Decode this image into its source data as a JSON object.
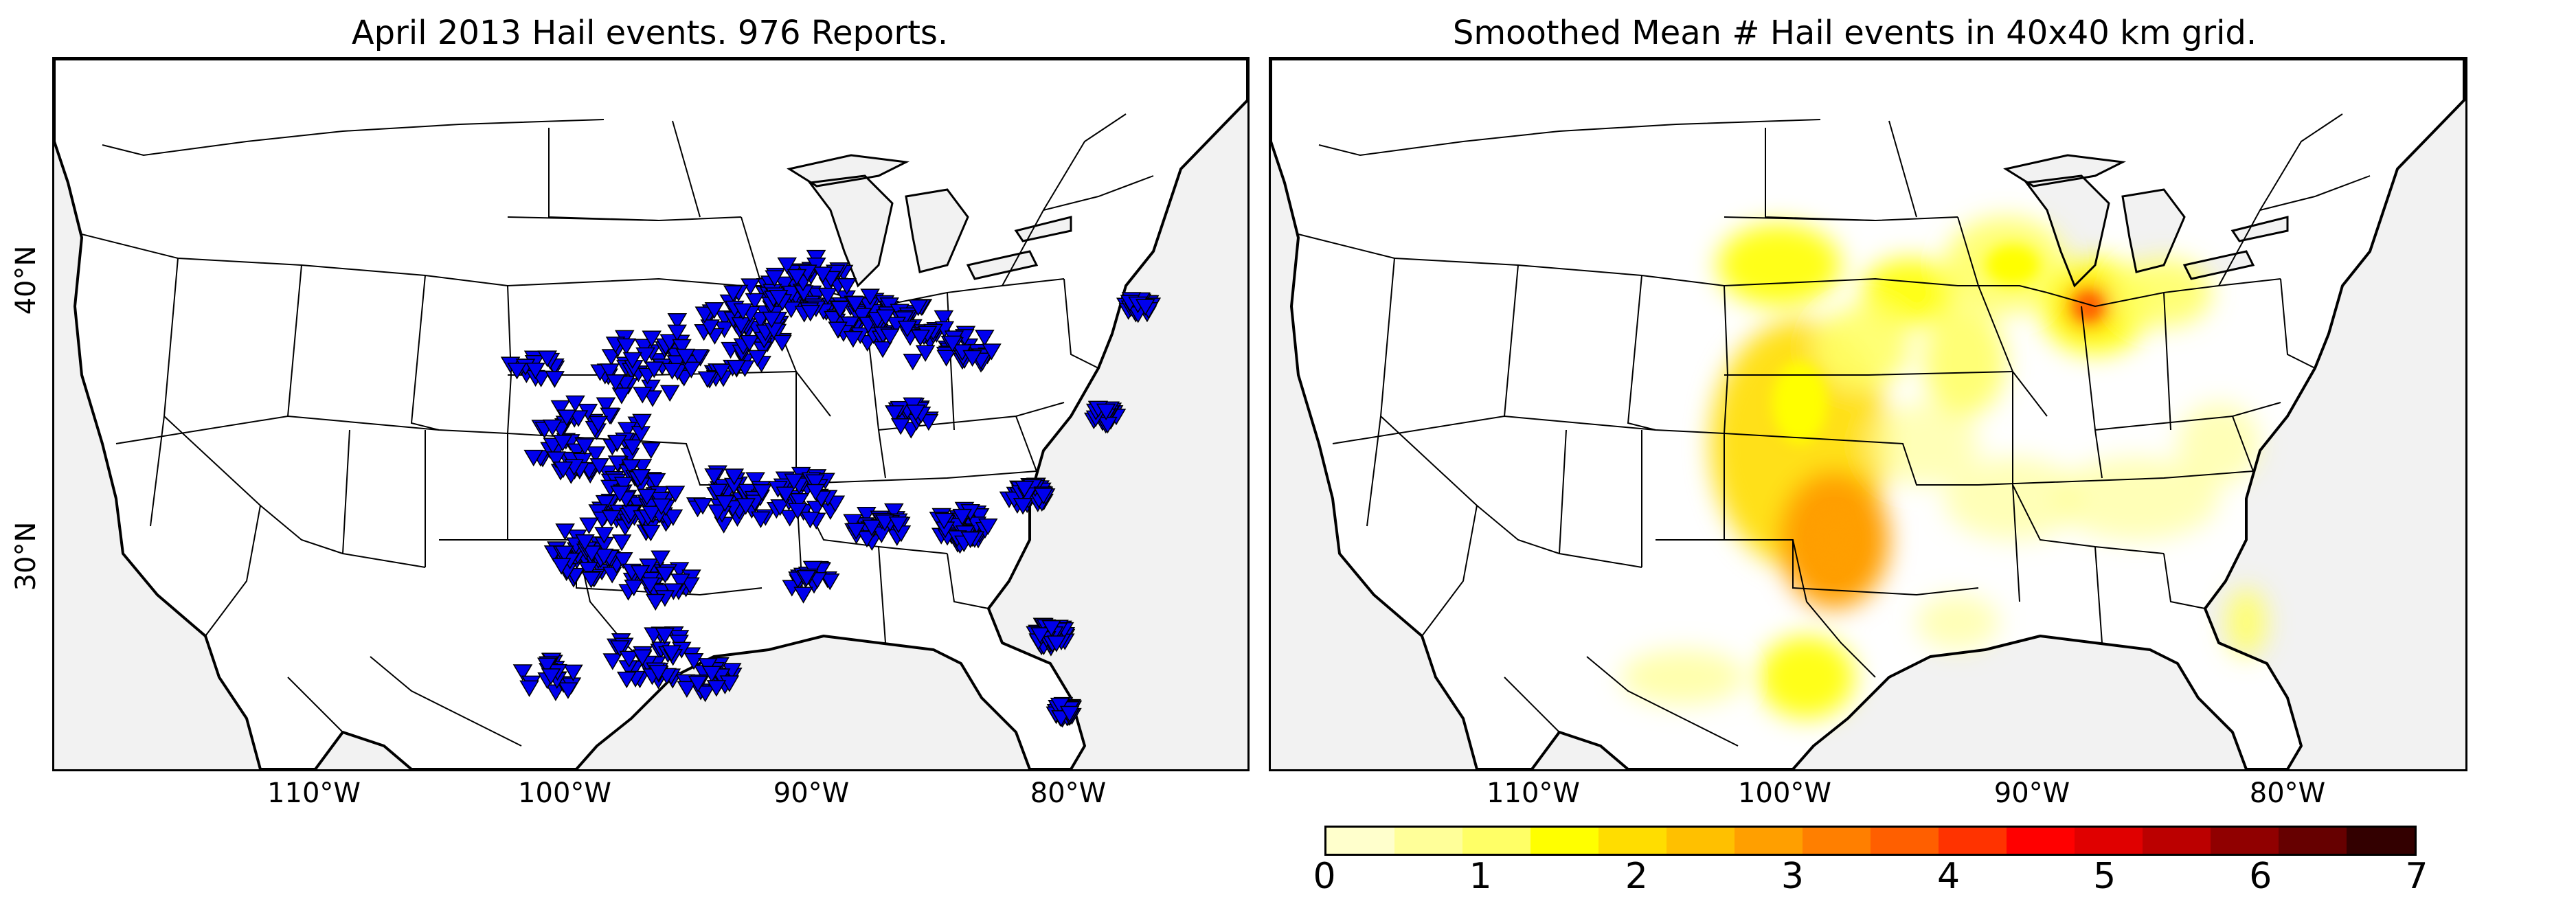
{
  "panels": {
    "left_title": "April 2013 Hail events. 976 Reports.",
    "right_title": "Smoothed Mean # Hail events in 40x40 km grid."
  },
  "axis": {
    "lon_ticks": [
      "110°W",
      "100°W",
      "90°W",
      "80°W"
    ],
    "lat_ticks": [
      "40°N",
      "30°N"
    ]
  },
  "colorbar": {
    "tick_labels": [
      "0",
      "1",
      "2",
      "3",
      "4",
      "5",
      "6",
      "7"
    ],
    "colors": [
      "#ffffcc",
      "#ffff99",
      "#ffff66",
      "#ffff00",
      "#ffdd00",
      "#ffc000",
      "#ff9f00",
      "#ff7f00",
      "#ff5f00",
      "#ff3300",
      "#ff0000",
      "#e00000",
      "#bb0000",
      "#900000",
      "#660000",
      "#330000"
    ]
  },
  "colors": {
    "ocean": "#f2f2f2",
    "land": "#ffffff",
    "marker": "#0000ee",
    "lakes": "#f2f2f2"
  },
  "icons": {
    "report_marker": "down-triangle"
  }
}
